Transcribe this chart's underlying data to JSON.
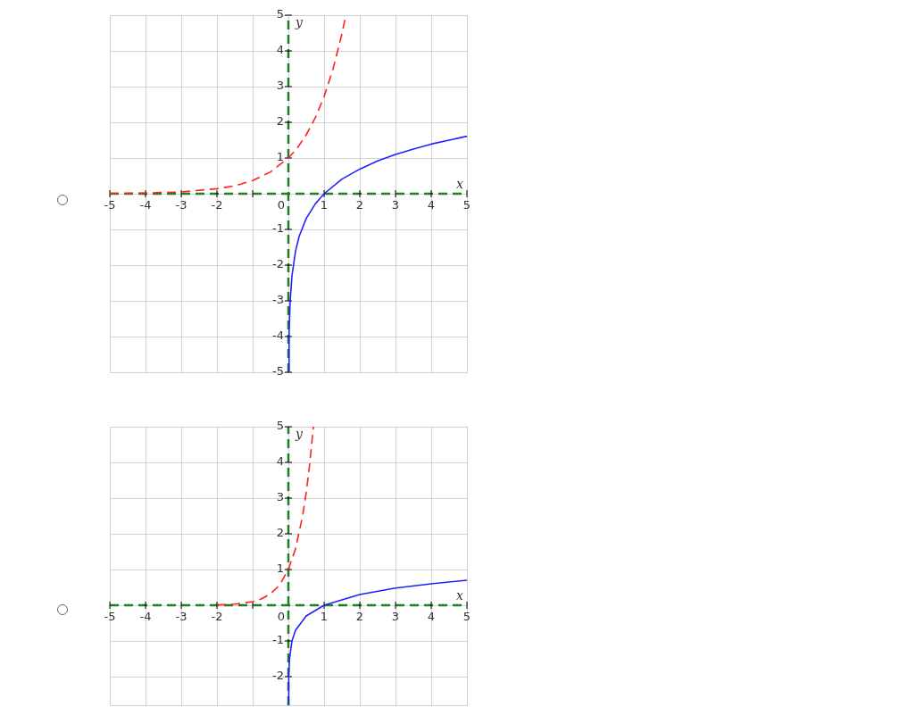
{
  "chart_data": [
    {
      "type": "line",
      "xlabel": "x",
      "ylabel": "y",
      "xlim": [
        -5,
        5
      ],
      "ylim": [
        -5,
        5
      ],
      "xticks": [
        -5,
        -4,
        -3,
        -2,
        {
          "value": -1,
          "label": null
        },
        0,
        1,
        2,
        3,
        4,
        5
      ],
      "yticks": [
        -5,
        -4,
        -3,
        -2,
        -1,
        {
          "value": 0,
          "label": null
        },
        1,
        2,
        3,
        4,
        5
      ],
      "grid": true,
      "legend": false,
      "series": [
        {
          "color": "#ff2020",
          "line_style": "dashed",
          "x": [
            -5,
            -4,
            -3,
            -2,
            -1.5,
            -1,
            -0.5,
            0,
            0.25,
            0.5,
            0.75,
            1,
            1.25,
            1.5,
            1.6
          ],
          "values": [
            0.01,
            0.02,
            0.05,
            0.14,
            0.22,
            0.37,
            0.61,
            1,
            1.28,
            1.65,
            2.12,
            2.72,
            3.49,
            4.48,
            4.95
          ]
        },
        {
          "color": "#2020ff",
          "line_style": "solid",
          "x": [
            0.007,
            0.02,
            0.05,
            0.1,
            0.2,
            0.3,
            0.5,
            0.75,
            1,
            1.5,
            2,
            2.5,
            3,
            3.5,
            4,
            4.5,
            5
          ],
          "values": [
            -4.96,
            -3.9,
            -3.0,
            -2.3,
            -1.61,
            -1.2,
            -0.69,
            -0.29,
            0,
            0.41,
            0.69,
            0.92,
            1.1,
            1.25,
            1.39,
            1.5,
            1.61
          ]
        }
      ]
    },
    {
      "type": "line",
      "xlabel": "x",
      "ylabel": "y",
      "xlim": [
        -5,
        5
      ],
      "ylim": [
        -2.8,
        5
      ],
      "xticks": [
        -5,
        -4,
        -3,
        -2,
        {
          "value": -1,
          "label": null
        },
        0,
        1,
        2,
        3,
        4,
        5
      ],
      "yticks": [
        -2,
        -1,
        {
          "value": 0,
          "label": null
        },
        1,
        2,
        3,
        4,
        5
      ],
      "grid": true,
      "legend": false,
      "series": [
        {
          "color": "#ff2020",
          "line_style": "dashed",
          "x": [
            -2,
            -1.5,
            -1,
            -0.75,
            -0.5,
            -0.25,
            0,
            0.2,
            0.4,
            0.5,
            0.6,
            0.7
          ],
          "values": [
            0.01,
            0.03,
            0.1,
            0.18,
            0.32,
            0.56,
            1,
            1.58,
            2.51,
            3.16,
            3.98,
            5.0
          ]
        },
        {
          "color": "#2020ff",
          "line_style": "solid",
          "x": [
            0.0016,
            0.01,
            0.03,
            0.1,
            0.2,
            0.5,
            1,
            2,
            3,
            4,
            5
          ],
          "values": [
            -2.8,
            -2,
            -1.52,
            -1,
            -0.7,
            -0.3,
            0,
            0.3,
            0.48,
            0.6,
            0.7
          ]
        }
      ]
    }
  ]
}
